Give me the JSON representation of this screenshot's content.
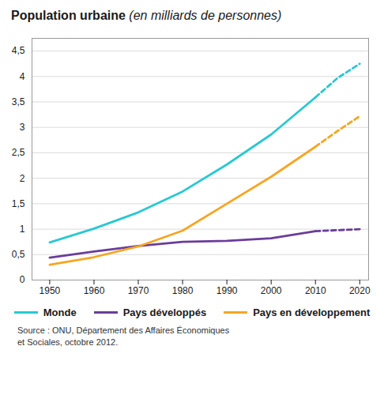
{
  "chart_data": {
    "type": "line",
    "title": "Population urbaine",
    "subtitle": "(en milliards de personnes)",
    "x": [
      1950,
      1960,
      1970,
      1980,
      1990,
      2000,
      2010,
      2015,
      2020
    ],
    "series": [
      {
        "name": "Monde",
        "color": "#29c8d2",
        "line_style": "solid",
        "values": [
          0.74,
          1.01,
          1.33,
          1.74,
          2.27,
          2.86,
          3.59,
          null,
          null
        ]
      },
      {
        "name": "Pays développés",
        "color": "#6a3d9a",
        "line_style": "solid",
        "values": [
          0.44,
          0.56,
          0.67,
          0.75,
          0.77,
          0.82,
          0.96,
          null,
          null
        ]
      },
      {
        "name": "Pays en développement",
        "color": "#f5a623",
        "line_style": "solid",
        "values": [
          0.3,
          0.45,
          0.66,
          0.97,
          1.5,
          2.03,
          2.62,
          null,
          null
        ]
      },
      {
        "name": "Monde",
        "color": "#29c8d2",
        "line_style": "dashed",
        "values": [
          null,
          null,
          null,
          null,
          null,
          null,
          3.59,
          3.97,
          4.25
        ]
      },
      {
        "name": "Pays développés",
        "color": "#6a3d9a",
        "line_style": "dashed",
        "values": [
          null,
          null,
          null,
          null,
          null,
          null,
          0.96,
          0.98,
          1.0
        ]
      },
      {
        "name": "Pays en développement",
        "color": "#f5a623",
        "line_style": "dashed",
        "values": [
          null,
          null,
          null,
          null,
          null,
          null,
          2.62,
          2.93,
          3.22
        ]
      }
    ],
    "xlim": [
      1946,
      2022
    ],
    "xticks": [
      1950,
      1960,
      1970,
      1980,
      1990,
      2000,
      2010,
      2020
    ],
    "ylim": [
      0,
      4.75
    ],
    "yticks": [
      0,
      {
        "value": 0.5,
        "label": "0,5"
      },
      1,
      {
        "value": 1.5,
        "label": "1,5"
      },
      2,
      {
        "value": 2.5,
        "label": "2,5"
      },
      3,
      {
        "value": 3.5,
        "label": "3,5"
      },
      4,
      {
        "value": 4.5,
        "label": "4,5"
      }
    ],
    "grid": true,
    "legend": "bottom",
    "source": "Source : ONU, Département des Affaires Économiques\net Sociales, octobre 2012."
  }
}
